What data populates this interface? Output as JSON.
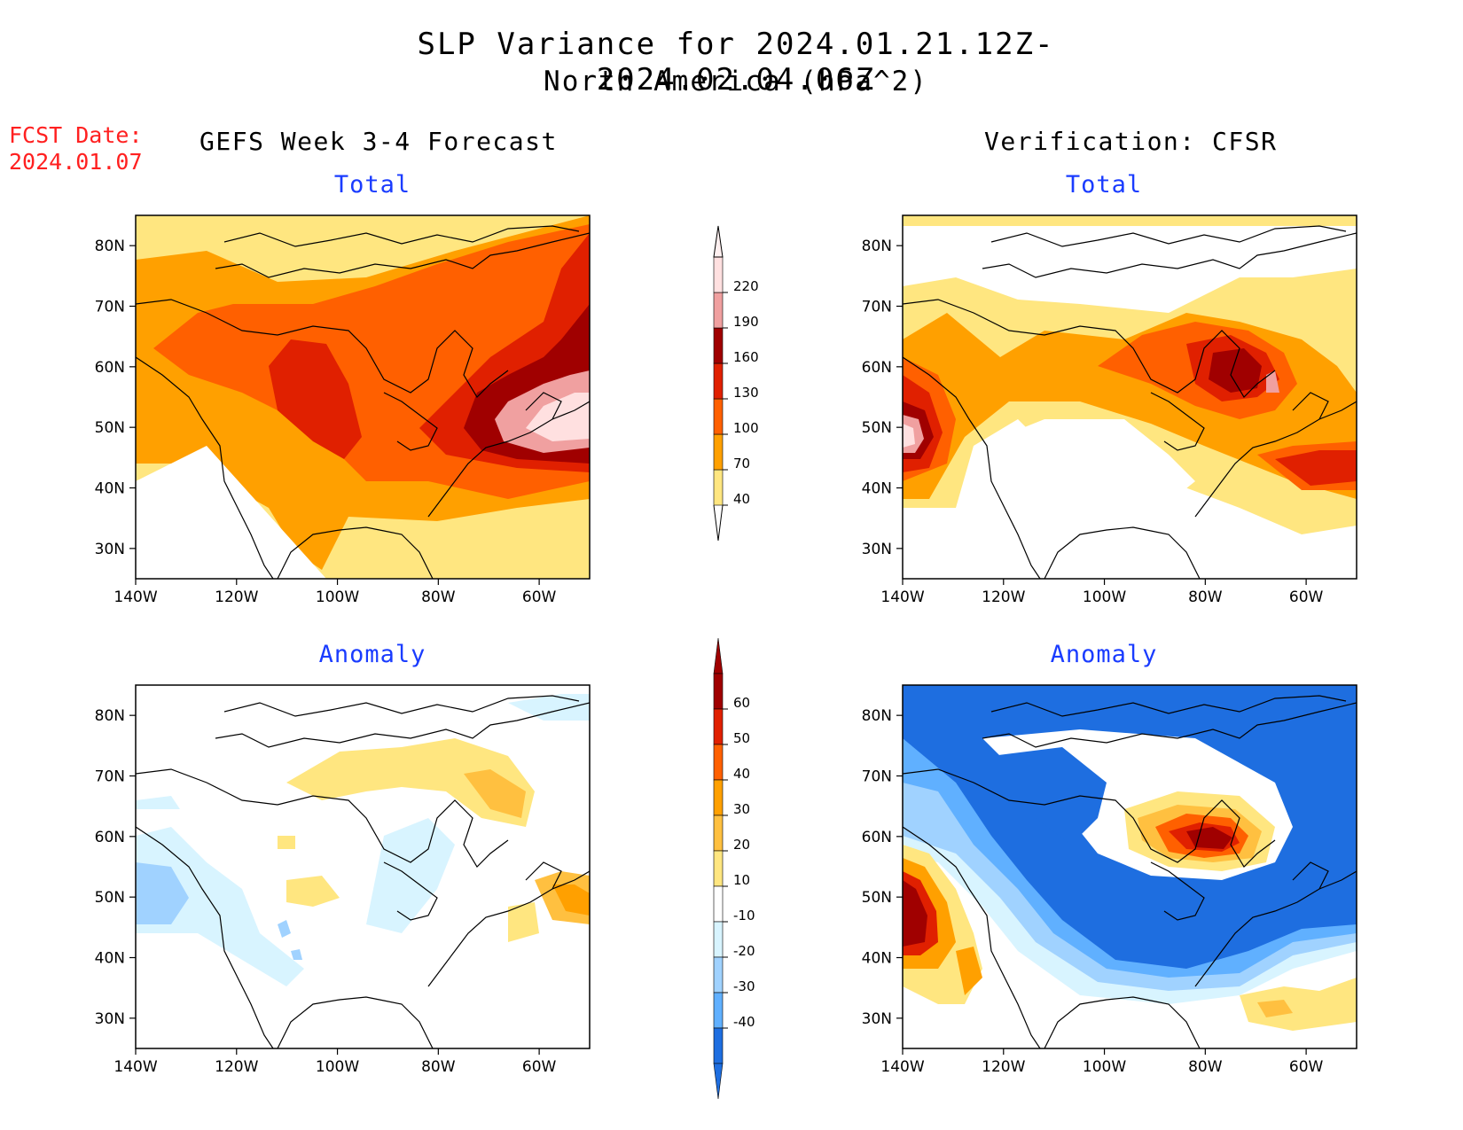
{
  "header": {
    "title_line1": "SLP Variance for 2024.01.21.12Z-2024.02.04.06Z",
    "title_line2": "North America (hPa^2)",
    "fcst_label": "FCST Date:",
    "fcst_date": "2024.01.07"
  },
  "columns": {
    "left": "GEFS Week 3-4 Forecast",
    "right": "Verification: CFSR"
  },
  "panels": [
    {
      "id": "fcst-total",
      "title": "Total"
    },
    {
      "id": "verif-total",
      "title": "Total"
    },
    {
      "id": "fcst-anomaly",
      "title": "Anomaly"
    },
    {
      "id": "verif-anomaly",
      "title": "Anomaly"
    }
  ],
  "axes": {
    "lat_labels": [
      "80N",
      "70N",
      "60N",
      "50N",
      "40N",
      "30N"
    ],
    "lon_labels": [
      "140W",
      "120W",
      "100W",
      "80W",
      "60W"
    ]
  },
  "colorbars": {
    "total": {
      "levels": [
        "40",
        "70",
        "100",
        "130",
        "160",
        "190",
        "220"
      ],
      "colors": [
        "#ffe680",
        "#ffa000",
        "#ff6000",
        "#e02000",
        "#a00000",
        "#f0a0a0",
        "#ffe0e0"
      ]
    },
    "anomaly": {
      "levels": [
        "60",
        "50",
        "40",
        "30",
        "20",
        "10",
        "-10",
        "-20",
        "-30",
        "-40"
      ],
      "colors": [
        "#a00000",
        "#e02000",
        "#ff6000",
        "#ffa000",
        "#ffc040",
        "#ffe680",
        "#ffffff",
        "#d8f4ff",
        "#a0d2ff",
        "#60b0ff",
        "#1e6ee0"
      ]
    }
  },
  "chart_data": [
    {
      "type": "heatmap",
      "title": "Total",
      "panel": "GEFS Week 3-4 Forecast",
      "units": "hPa^2",
      "xlabel": "",
      "ylabel": "",
      "lat_range": [
        25,
        85
      ],
      "lon_range": [
        -140,
        -50
      ]
    },
    {
      "type": "heatmap",
      "title": "Total",
      "panel": "Verification: CFSR",
      "units": "hPa^2",
      "xlabel": "",
      "ylabel": "",
      "lat_range": [
        25,
        85
      ],
      "lon_range": [
        -140,
        -50
      ]
    },
    {
      "type": "heatmap",
      "title": "Anomaly",
      "panel": "GEFS Week 3-4 Forecast",
      "units": "hPa^2",
      "xlabel": "",
      "ylabel": "",
      "lat_range": [
        25,
        85
      ],
      "lon_range": [
        -140,
        -50
      ]
    },
    {
      "type": "heatmap",
      "title": "Anomaly",
      "panel": "Verification: CFSR",
      "units": "hPa^2",
      "xlabel": "",
      "ylabel": "",
      "lat_range": [
        25,
        85
      ],
      "lon_range": [
        -140,
        -50
      ]
    }
  ]
}
